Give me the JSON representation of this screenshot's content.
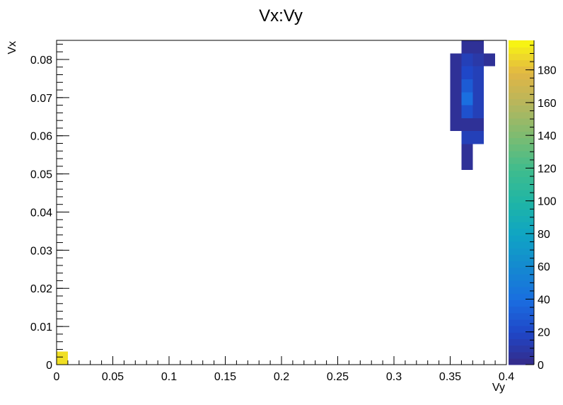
{
  "chart_data": {
    "type": "heatmap",
    "title": "Vx:Vy",
    "xlabel": "Vy",
    "ylabel": "Vx",
    "xlim": [
      0,
      0.4
    ],
    "ylim": [
      0,
      0.085
    ],
    "zlim": [
      0,
      198
    ],
    "bin_width_x": 0.01,
    "bin_width_y": 0.0034,
    "x_ticks": [
      "0",
      "0.05",
      "0.1",
      "0.15",
      "0.2",
      "0.25",
      "0.3",
      "0.35",
      "0.4"
    ],
    "y_ticks": [
      "0",
      "0.01",
      "0.02",
      "0.03",
      "0.04",
      "0.05",
      "0.06",
      "0.07",
      "0.08"
    ],
    "z_ticks": [
      "0",
      "20",
      "40",
      "60",
      "80",
      "100",
      "120",
      "140",
      "160",
      "180"
    ],
    "grid": false,
    "colormap": "viridis-like",
    "cells": [
      {
        "vy": 0.0,
        "vx": 0.0,
        "count": 190
      },
      {
        "vy": 0.36,
        "vx": 0.051,
        "count": 5
      },
      {
        "vy": 0.36,
        "vx": 0.0544,
        "count": 5
      },
      {
        "vy": 0.36,
        "vx": 0.0578,
        "count": 15
      },
      {
        "vy": 0.37,
        "vx": 0.0578,
        "count": 15
      },
      {
        "vy": 0.35,
        "vx": 0.0612,
        "count": 5
      },
      {
        "vy": 0.36,
        "vx": 0.0612,
        "count": 5
      },
      {
        "vy": 0.37,
        "vx": 0.0612,
        "count": 5
      },
      {
        "vy": 0.35,
        "vx": 0.0646,
        "count": 5
      },
      {
        "vy": 0.36,
        "vx": 0.0646,
        "count": 25
      },
      {
        "vy": 0.37,
        "vx": 0.0646,
        "count": 15
      },
      {
        "vy": 0.35,
        "vx": 0.068,
        "count": 5
      },
      {
        "vy": 0.36,
        "vx": 0.068,
        "count": 40
      },
      {
        "vy": 0.37,
        "vx": 0.068,
        "count": 15
      },
      {
        "vy": 0.35,
        "vx": 0.0714,
        "count": 5
      },
      {
        "vy": 0.36,
        "vx": 0.0714,
        "count": 30
      },
      {
        "vy": 0.37,
        "vx": 0.0714,
        "count": 15
      },
      {
        "vy": 0.35,
        "vx": 0.0748,
        "count": 5
      },
      {
        "vy": 0.36,
        "vx": 0.0748,
        "count": 20
      },
      {
        "vy": 0.37,
        "vx": 0.0748,
        "count": 15
      },
      {
        "vy": 0.35,
        "vx": 0.0782,
        "count": 5
      },
      {
        "vy": 0.36,
        "vx": 0.0782,
        "count": 15
      },
      {
        "vy": 0.37,
        "vx": 0.0782,
        "count": 10
      },
      {
        "vy": 0.38,
        "vx": 0.0782,
        "count": 5
      },
      {
        "vy": 0.36,
        "vx": 0.0816,
        "count": 5
      },
      {
        "vy": 0.37,
        "vx": 0.0816,
        "count": 5
      },
      {
        "vy": 0.36,
        "vx": 0.085,
        "count": 5
      }
    ]
  }
}
